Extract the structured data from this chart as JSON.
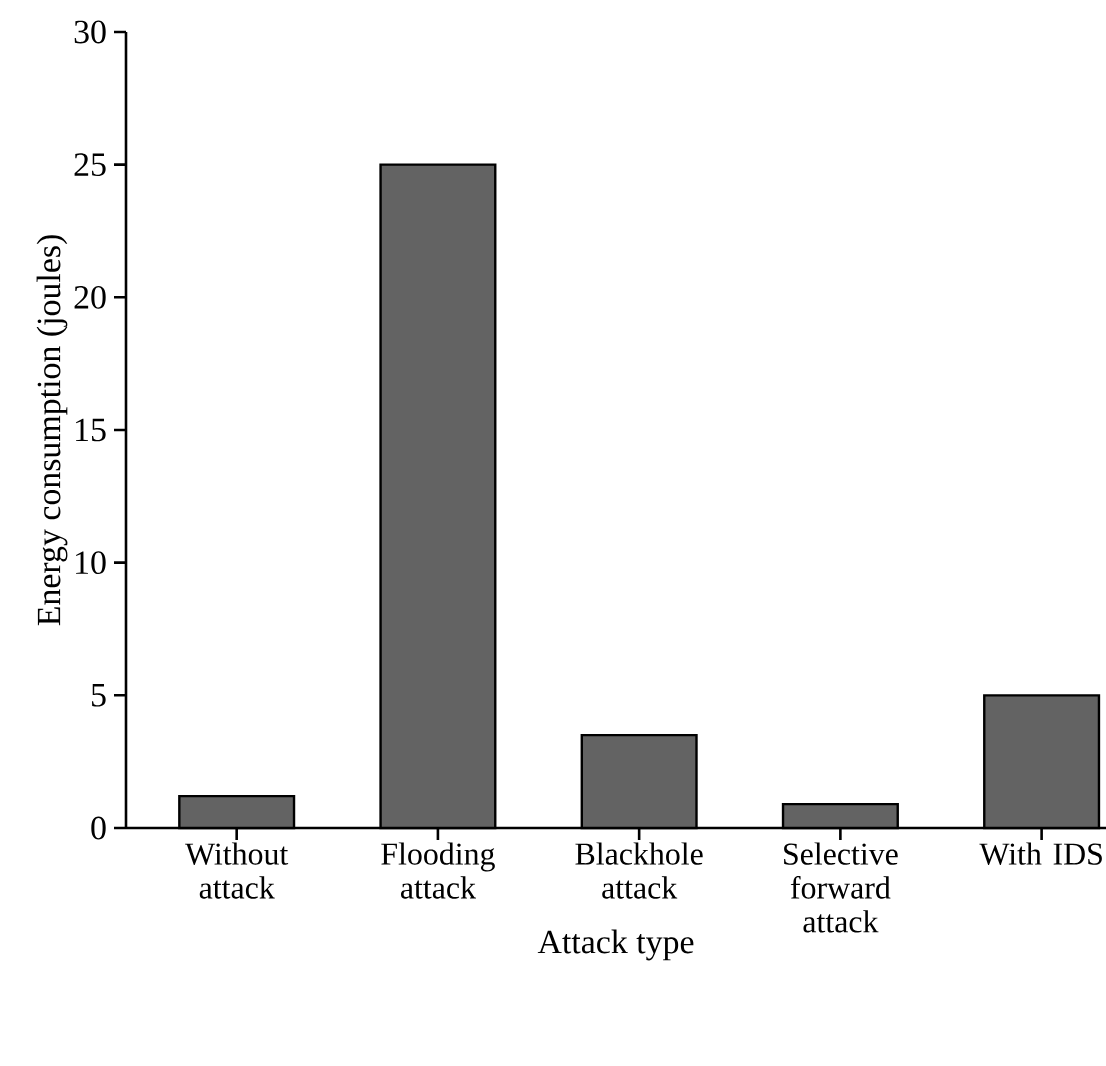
{
  "chart_data": {
    "type": "bar",
    "xlabel": "Attack type",
    "ylabel": "Energy consumption (joules)",
    "categories": [
      "Without attack",
      "Flooding attack",
      "Blackhole attack",
      "Selective forward attack",
      "With IDS"
    ],
    "values": [
      1.2,
      25,
      3.5,
      0.9,
      5
    ],
    "color": "#636363",
    "ylim": [
      0,
      30
    ],
    "yticks": [
      0,
      5,
      10,
      15,
      20,
      25,
      30
    ]
  }
}
